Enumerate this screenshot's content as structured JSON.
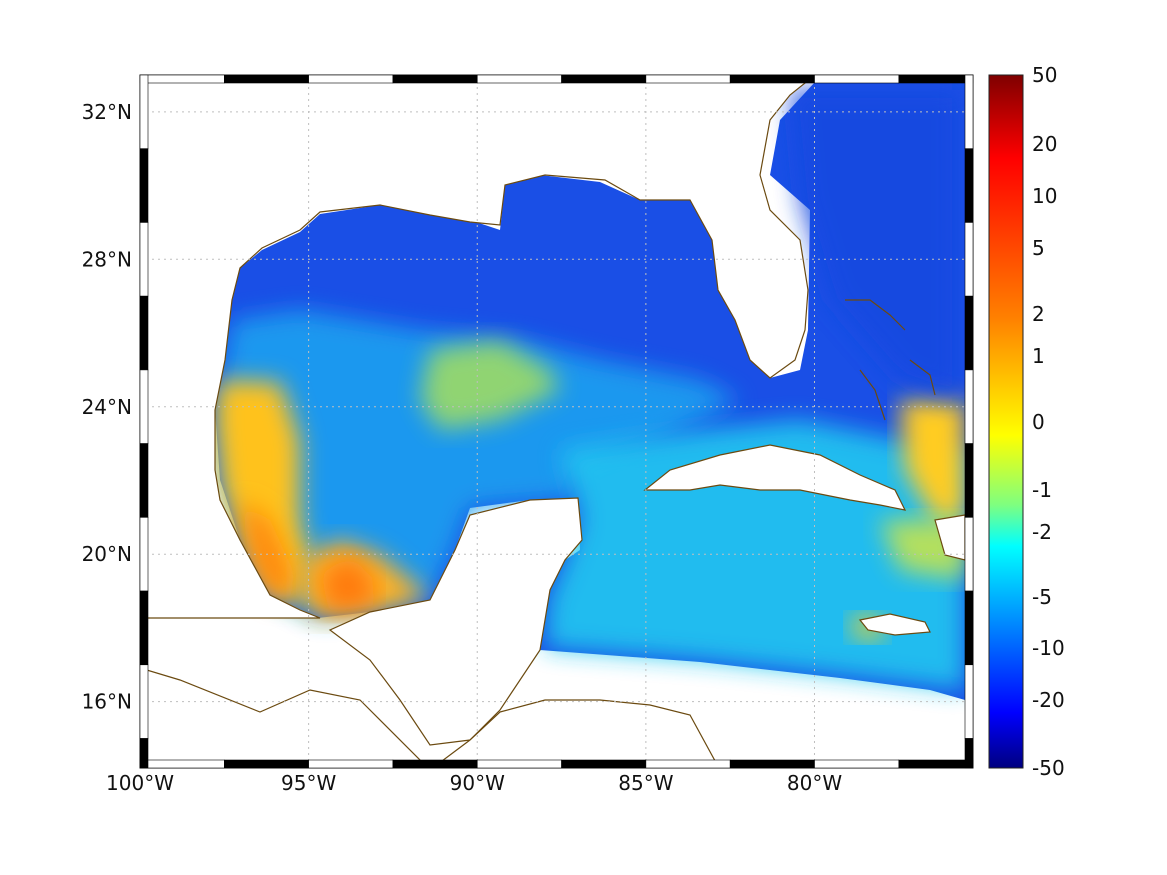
{
  "map": {
    "lon_labels": [
      "100°W",
      "95°W",
      "90°W",
      "85°W",
      "80°W"
    ],
    "lat_labels": [
      "32°N",
      "28°N",
      "24°N",
      "20°N",
      "16°N"
    ],
    "lon_ticks": [
      -100,
      -95,
      -90,
      -85,
      -80
    ],
    "lat_ticks": [
      32,
      28,
      24,
      20,
      16
    ],
    "lon_range": [
      -100,
      -75.3
    ],
    "lat_range": [
      14.2,
      33.0
    ],
    "coast_color": "#6b4a10",
    "grid": true
  },
  "colorbar": {
    "tick_labels": [
      "50",
      "20",
      "10",
      "5",
      "2",
      "1",
      "0",
      "-1",
      "-2",
      "-5",
      "-10",
      "-20",
      "-50"
    ],
    "colors": [
      "#7f0000",
      "#ff0000",
      "#ff8000",
      "#ffff00",
      "#00ffff",
      "#0080ff",
      "#0000ff",
      "#00007f"
    ]
  }
}
